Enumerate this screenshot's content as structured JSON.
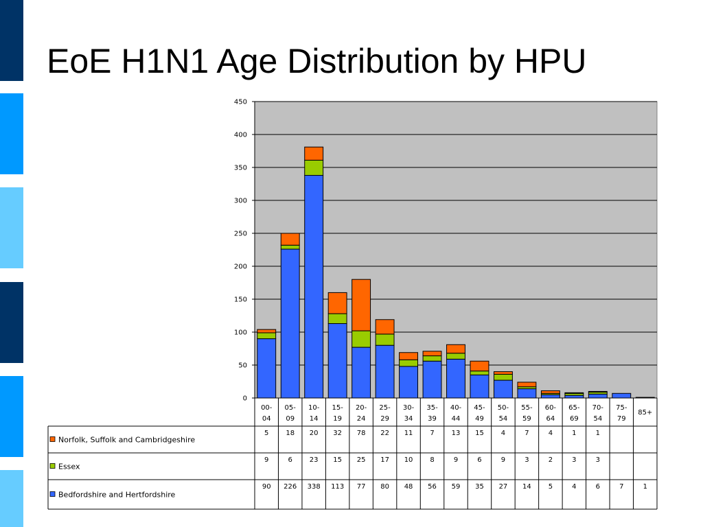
{
  "slide": {
    "title": "EoE H1N1 Age Distribution by HPU",
    "side_bar_colors": [
      "#003366",
      "#0099ff",
      "#66ccff",
      "#003366",
      "#0099ff",
      "#66ccff"
    ]
  },
  "chart_data": {
    "type": "bar",
    "stacked": true,
    "title": "",
    "xlabel": "",
    "ylabel": "",
    "ylim": [
      0,
      450
    ],
    "yticks": [
      0,
      50,
      100,
      150,
      200,
      250,
      300,
      350,
      400,
      450
    ],
    "grid": true,
    "plot_background": "#c0c0c0",
    "legend_placement": "data-table-left",
    "categories": [
      [
        "00-",
        "04"
      ],
      [
        "05-",
        "09"
      ],
      [
        "10-",
        "14"
      ],
      [
        "15-",
        "19"
      ],
      [
        "20-",
        "24"
      ],
      [
        "25-",
        "29"
      ],
      [
        "30-",
        "34"
      ],
      [
        "35-",
        "39"
      ],
      [
        "40-",
        "44"
      ],
      [
        "45-",
        "49"
      ],
      [
        "50-",
        "54"
      ],
      [
        "55-",
        "59"
      ],
      [
        "60-",
        "64"
      ],
      [
        "65-",
        "69"
      ],
      [
        "70-",
        "54"
      ],
      [
        "75-",
        "79"
      ],
      [
        "85+"
      ]
    ],
    "series": [
      {
        "name": "Norfolk, Suffolk and Cambridgeshire",
        "color": "#ff6600",
        "values": [
          5,
          18,
          20,
          32,
          78,
          22,
          11,
          7,
          13,
          15,
          4,
          7,
          4,
          1,
          1,
          null,
          null
        ]
      },
      {
        "name": "Essex",
        "color": "#99cc00",
        "values": [
          9,
          6,
          23,
          15,
          25,
          17,
          10,
          8,
          9,
          6,
          9,
          3,
          2,
          3,
          3,
          null,
          null
        ]
      },
      {
        "name": "Bedfordshire and Hertfordshire",
        "color": "#3366ff",
        "values": [
          90,
          226,
          338,
          113,
          77,
          80,
          48,
          56,
          59,
          35,
          27,
          14,
          5,
          4,
          6,
          7,
          1
        ]
      }
    ]
  }
}
